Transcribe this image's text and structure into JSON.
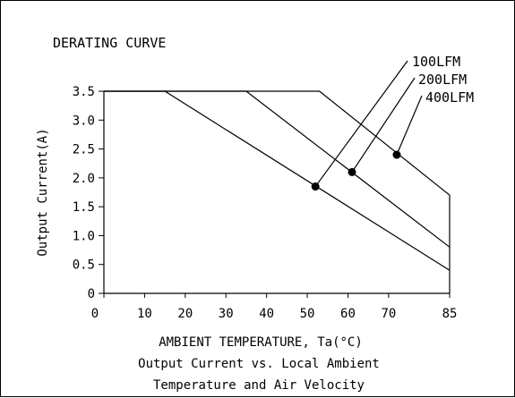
{
  "chart_data": {
    "type": "line",
    "title": "DERATING CURVE",
    "xlabel": "AMBIENT TEMPERATURE, Ta(°C)",
    "ylabel": "Output Current(A)",
    "caption": [
      "Output Current vs. Local Ambient",
      "Temperature and Air Velocity"
    ],
    "xlim": [
      0,
      85
    ],
    "ylim": [
      0,
      3.5
    ],
    "x_ticks": [
      0,
      10,
      20,
      30,
      40,
      50,
      60,
      70,
      85
    ],
    "x_tick_labels": [
      "0",
      "10",
      "20",
      "30",
      "40",
      "50",
      "60",
      "70",
      "85"
    ],
    "y_ticks": [
      0,
      0.5,
      1.0,
      1.5,
      2.0,
      2.5,
      3.0,
      3.5
    ],
    "y_tick_labels": [
      "0",
      "0.5",
      "1.0",
      "1.5",
      "2.0",
      "2.5",
      "3.0",
      "3.5"
    ],
    "grid": false,
    "legend": "top-right callouts",
    "series": [
      {
        "name": "100LFM",
        "x": [
          0,
          15,
          85
        ],
        "y": [
          3.5,
          3.5,
          0.4
        ],
        "marker": [
          52,
          1.85
        ]
      },
      {
        "name": "200LFM",
        "x": [
          0,
          35,
          85
        ],
        "y": [
          3.5,
          3.5,
          0.8
        ],
        "marker": [
          61,
          2.1
        ]
      },
      {
        "name": "400LFM",
        "x": [
          0,
          53,
          85,
          85
        ],
        "y": [
          3.5,
          3.5,
          1.7,
          0
        ],
        "marker": [
          72,
          2.4
        ]
      }
    ],
    "colors": {
      "line": "#000000",
      "background": "#ffffff"
    }
  }
}
